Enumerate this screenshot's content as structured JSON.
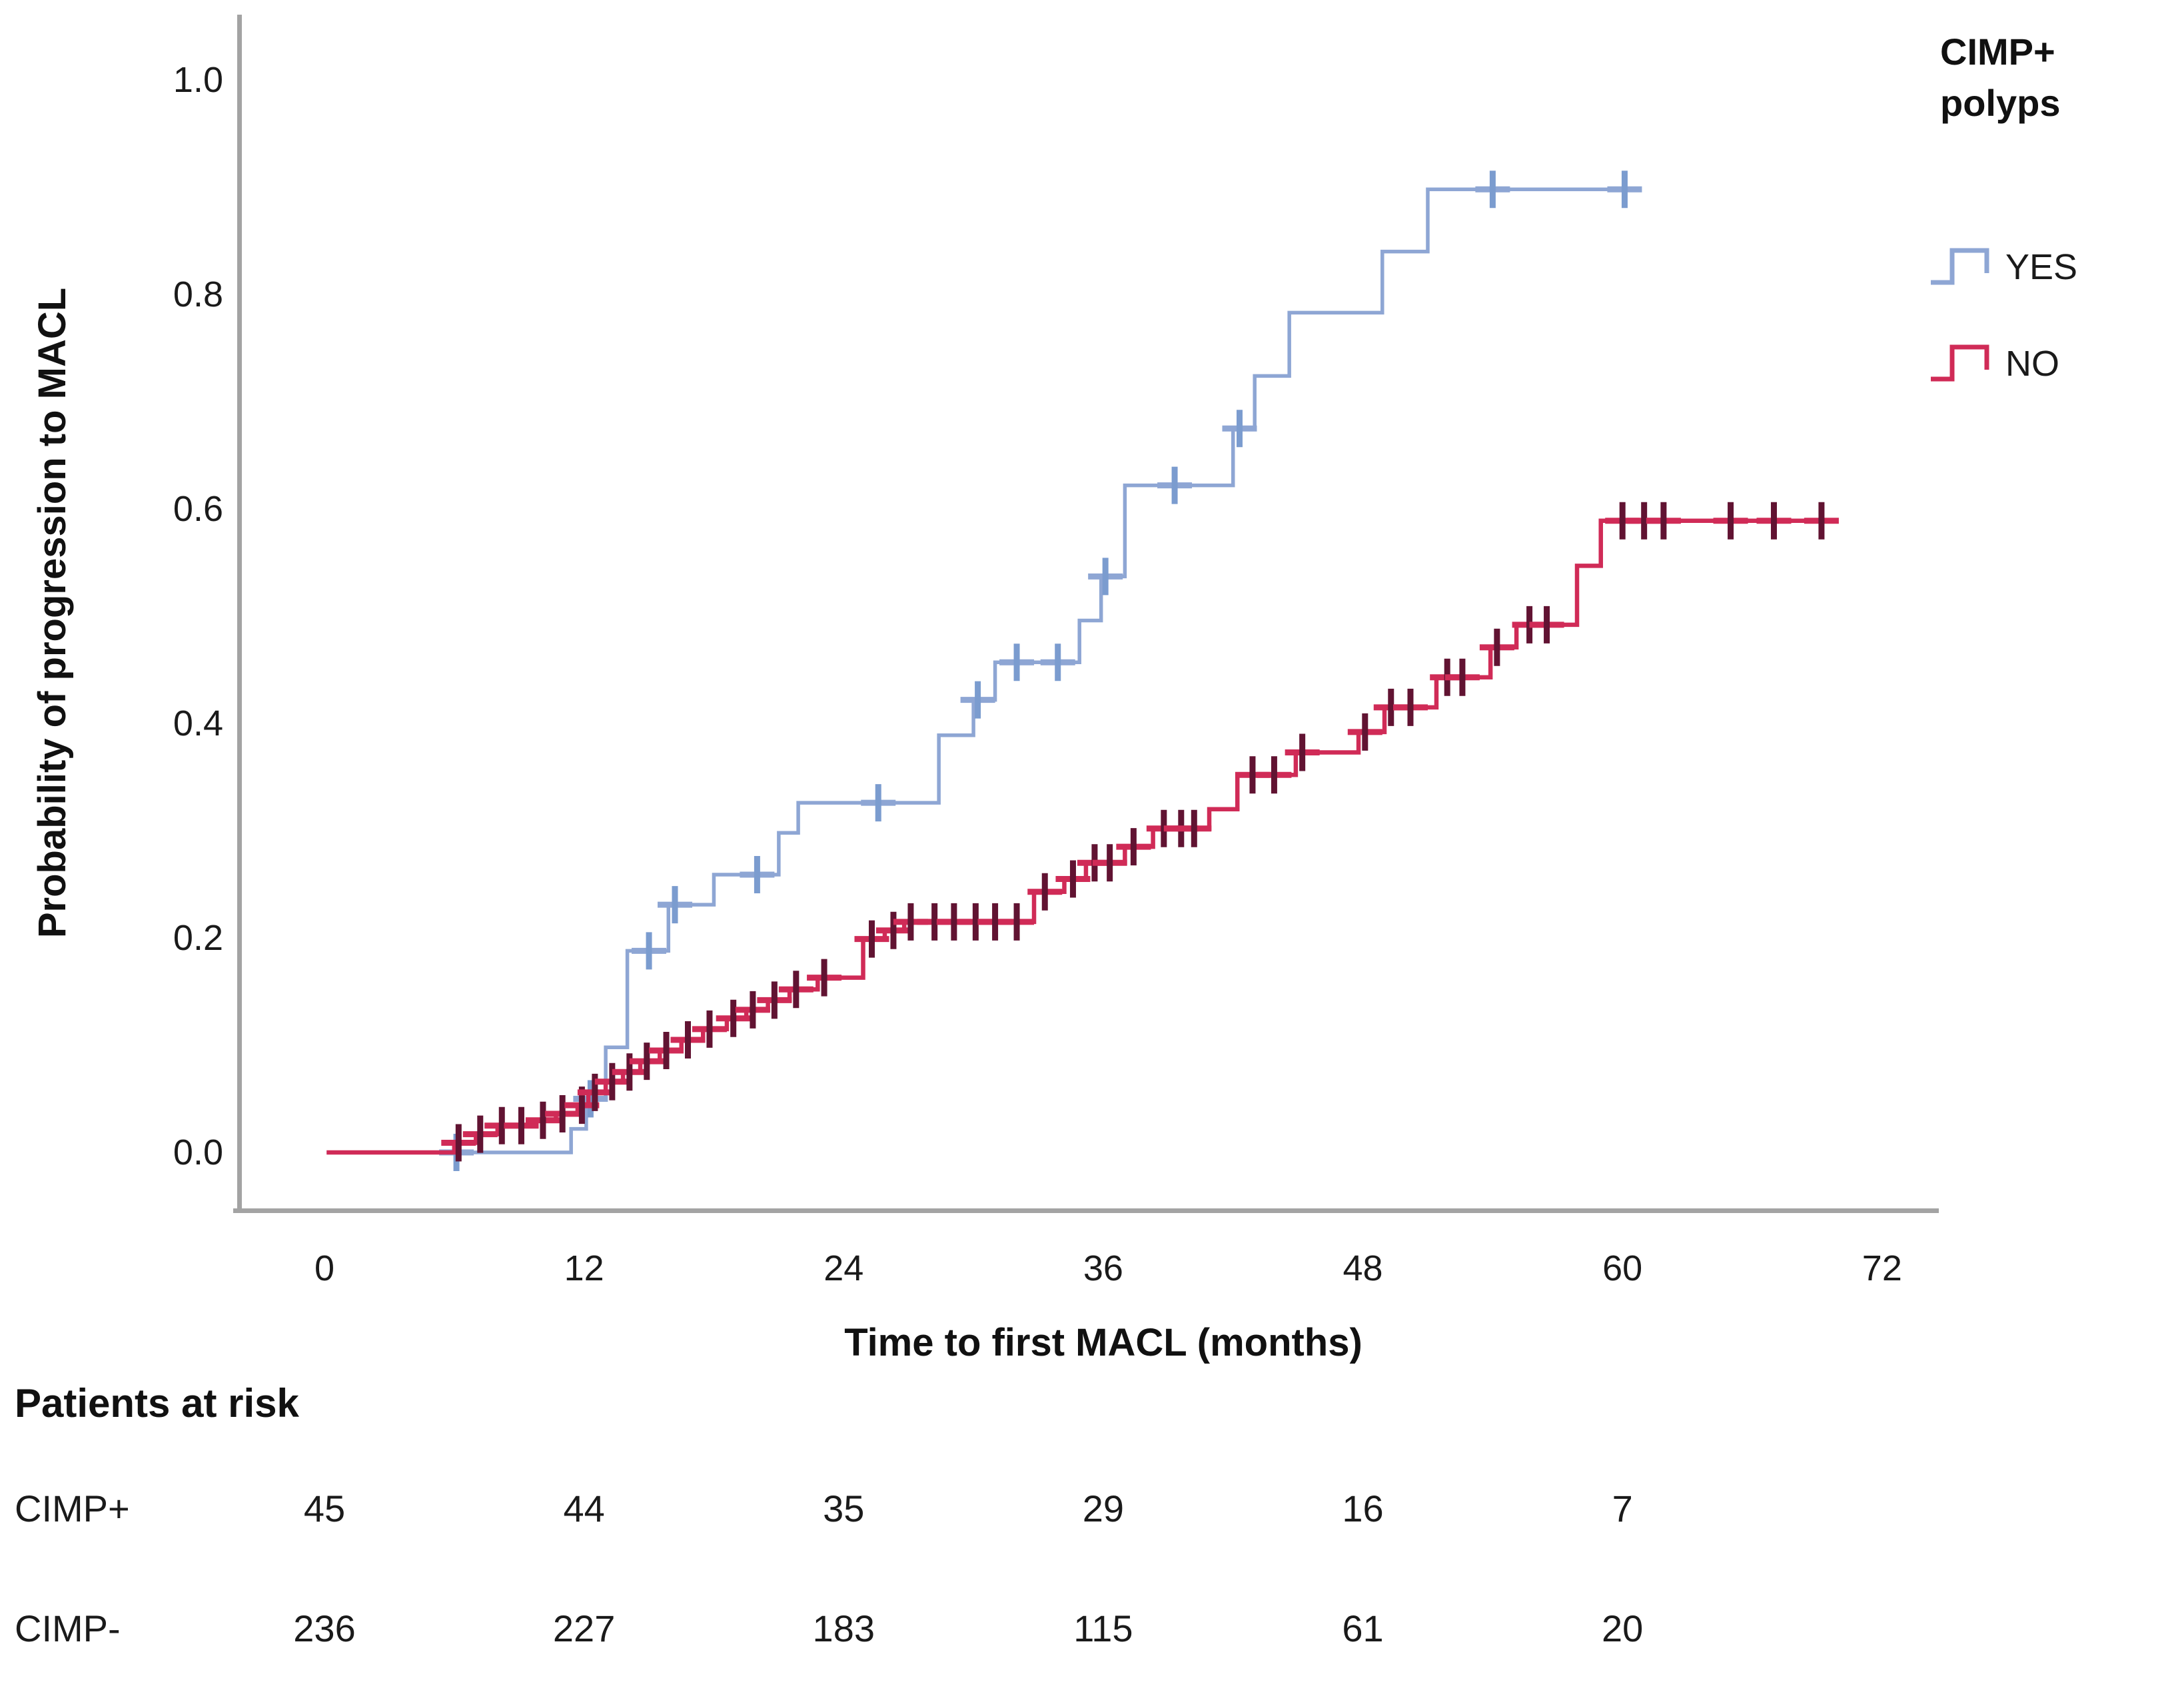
{
  "chart_data": {
    "type": "line",
    "subtype": "kaplan-meier-step-curve",
    "title": "",
    "xlabel": "Time to first MACL (months)",
    "ylabel": "Probability of progression to MACL",
    "xlim": [
      0,
      72
    ],
    "ylim": [
      0.0,
      1.0
    ],
    "xticks": [
      "0",
      "12",
      "24",
      "36",
      "48",
      "60",
      "72"
    ],
    "yticks": [
      "0.0",
      "0.2",
      "0.4",
      "0.6",
      "0.8",
      "1.0"
    ],
    "grid": false,
    "legend": {
      "position": "top-right",
      "title_line1": "CIMP+",
      "title_line2": "polyps",
      "entries": [
        {
          "label": "YES",
          "color": "#8ea6d4",
          "censor_color": "#7b9ccf"
        },
        {
          "label": "NO",
          "color": "#d02b57",
          "censor_color": "#611332"
        }
      ]
    },
    "series": [
      {
        "name": "YES",
        "color": "#8ea6d4",
        "censor_color": "#7b9ccf",
        "end_time": 60.4,
        "steps": [
          [
            11.4,
            0.022
          ],
          [
            12.1,
            0.05
          ],
          [
            13.0,
            0.098
          ],
          [
            14.0,
            0.188
          ],
          [
            15.9,
            0.231
          ],
          [
            18.0,
            0.259
          ],
          [
            21.0,
            0.298
          ],
          [
            21.9,
            0.326
          ],
          [
            28.4,
            0.389
          ],
          [
            30.0,
            0.422
          ],
          [
            31.0,
            0.457
          ],
          [
            34.9,
            0.496
          ],
          [
            35.9,
            0.537
          ],
          [
            37.0,
            0.622
          ],
          [
            42.0,
            0.675
          ],
          [
            43.0,
            0.724
          ],
          [
            44.6,
            0.783
          ],
          [
            48.9,
            0.84
          ],
          [
            51.0,
            0.898
          ]
        ],
        "censors": [
          [
            6.1,
            0.0
          ],
          [
            12.3,
            0.05
          ],
          [
            15.0,
            0.188
          ],
          [
            16.2,
            0.231
          ],
          [
            20.0,
            0.259
          ],
          [
            25.6,
            0.326
          ],
          [
            30.2,
            0.422
          ],
          [
            32.0,
            0.457
          ],
          [
            33.9,
            0.457
          ],
          [
            36.1,
            0.537
          ],
          [
            39.3,
            0.622
          ],
          [
            42.3,
            0.675
          ],
          [
            54.0,
            0.898
          ],
          [
            60.1,
            0.898
          ]
        ]
      },
      {
        "name": "NO",
        "color": "#d02b57",
        "censor_color": "#611332",
        "end_time": 69.5,
        "steps": [
          [
            6.0,
            0.009
          ],
          [
            7.0,
            0.017
          ],
          [
            8.0,
            0.025
          ],
          [
            9.8,
            0.03
          ],
          [
            10.7,
            0.036
          ],
          [
            11.7,
            0.044
          ],
          [
            12.2,
            0.056
          ],
          [
            13.0,
            0.066
          ],
          [
            13.8,
            0.075
          ],
          [
            14.6,
            0.085
          ],
          [
            15.5,
            0.095
          ],
          [
            16.5,
            0.105
          ],
          [
            17.5,
            0.115
          ],
          [
            18.6,
            0.125
          ],
          [
            19.5,
            0.133
          ],
          [
            20.5,
            0.142
          ],
          [
            21.5,
            0.152
          ],
          [
            22.8,
            0.163
          ],
          [
            24.9,
            0.199
          ],
          [
            25.9,
            0.207
          ],
          [
            26.8,
            0.215
          ],
          [
            32.8,
            0.243
          ],
          [
            34.2,
            0.255
          ],
          [
            35.2,
            0.27
          ],
          [
            37.0,
            0.285
          ],
          [
            38.3,
            0.302
          ],
          [
            40.9,
            0.32
          ],
          [
            42.2,
            0.352
          ],
          [
            44.9,
            0.373
          ],
          [
            47.8,
            0.392
          ],
          [
            49.0,
            0.415
          ],
          [
            51.4,
            0.443
          ],
          [
            53.9,
            0.471
          ],
          [
            55.1,
            0.492
          ],
          [
            57.9,
            0.547
          ],
          [
            59.0,
            0.589
          ]
        ],
        "censors": [
          [
            6.2,
            0.009
          ],
          [
            7.2,
            0.017
          ],
          [
            8.2,
            0.025
          ],
          [
            9.1,
            0.025
          ],
          [
            10.1,
            0.03
          ],
          [
            11.0,
            0.036
          ],
          [
            11.9,
            0.044
          ],
          [
            12.5,
            0.056
          ],
          [
            13.3,
            0.066
          ],
          [
            14.1,
            0.075
          ],
          [
            14.9,
            0.085
          ],
          [
            15.8,
            0.095
          ],
          [
            16.8,
            0.105
          ],
          [
            17.8,
            0.115
          ],
          [
            18.9,
            0.125
          ],
          [
            19.8,
            0.133
          ],
          [
            20.8,
            0.142
          ],
          [
            21.8,
            0.152
          ],
          [
            23.1,
            0.163
          ],
          [
            25.3,
            0.199
          ],
          [
            26.3,
            0.207
          ],
          [
            27.1,
            0.215
          ],
          [
            28.2,
            0.215
          ],
          [
            29.1,
            0.215
          ],
          [
            30.1,
            0.215
          ],
          [
            31.0,
            0.215
          ],
          [
            32.0,
            0.215
          ],
          [
            33.3,
            0.243
          ],
          [
            34.6,
            0.255
          ],
          [
            35.6,
            0.27
          ],
          [
            36.3,
            0.27
          ],
          [
            37.4,
            0.285
          ],
          [
            38.8,
            0.302
          ],
          [
            39.6,
            0.302
          ],
          [
            40.2,
            0.302
          ],
          [
            42.9,
            0.352
          ],
          [
            43.9,
            0.352
          ],
          [
            45.2,
            0.373
          ],
          [
            48.1,
            0.392
          ],
          [
            49.3,
            0.415
          ],
          [
            50.2,
            0.415
          ],
          [
            51.9,
            0.443
          ],
          [
            52.6,
            0.443
          ],
          [
            54.2,
            0.471
          ],
          [
            55.7,
            0.492
          ],
          [
            56.5,
            0.492
          ],
          [
            60.0,
            0.589
          ],
          [
            61.0,
            0.589
          ],
          [
            61.9,
            0.589
          ],
          [
            65.0,
            0.589
          ],
          [
            67.0,
            0.589
          ],
          [
            69.2,
            0.589
          ]
        ]
      }
    ],
    "at_risk": {
      "title": "Patients at risk",
      "times": [
        0,
        12,
        24,
        36,
        48,
        60
      ],
      "rows": [
        {
          "label": "CIMP+",
          "counts": [
            "45",
            "44",
            "35",
            "29",
            "16",
            "7"
          ]
        },
        {
          "label": "CIMP-",
          "counts": [
            "236",
            "227",
            "183",
            "115",
            "61",
            "20"
          ]
        }
      ]
    }
  },
  "colors": {
    "axis": "#a3a3a3",
    "text": "#1a1a1a",
    "background": "#ffffff"
  }
}
